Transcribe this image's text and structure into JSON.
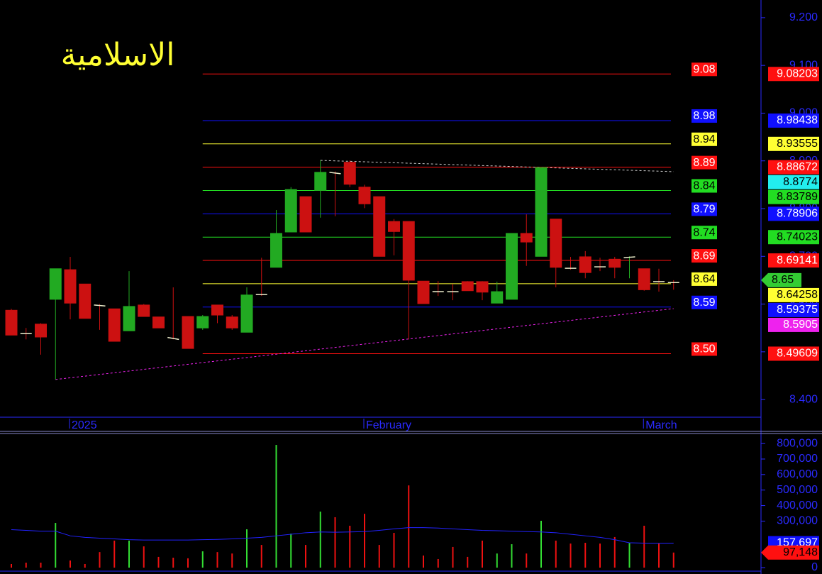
{
  "chart_data": {
    "type": "candlestick",
    "title": "الاسلامية",
    "title_color": "#ffff33",
    "axis_color": "#2a2aff",
    "up_color": "#22aa22",
    "down_color": "#cc1111",
    "categories": [
      null,
      null,
      null,
      null,
      "2025",
      null,
      null,
      null,
      null,
      null,
      null,
      null,
      null,
      null,
      null,
      null,
      null,
      null,
      null,
      null,
      null,
      null,
      null,
      null,
      "February",
      null,
      null,
      null,
      null,
      null,
      null,
      null,
      null,
      null,
      null,
      null,
      null,
      null,
      null,
      null,
      null,
      null,
      null,
      "March",
      null,
      null
    ],
    "open": [
      8.587,
      8.538,
      8.558,
      8.61,
      8.672,
      8.642,
      8.598,
      8.59,
      8.544,
      8.598,
      8.573,
      8.53,
      8.574,
      8.55,
      8.598,
      8.573,
      8.541,
      8.62,
      8.677,
      8.751,
      8.825,
      8.838,
      8.876,
      8.897,
      8.845,
      8.825,
      8.773,
      8.773,
      8.648,
      8.626,
      8.626,
      8.647,
      8.647,
      8.602,
      8.61,
      8.748,
      8.7,
      8.778,
      8.675,
      8.699,
      8.678,
      8.694,
      8.697,
      8.674,
      8.647,
      8.645
    ],
    "high": [
      8.59,
      8.55,
      8.56,
      8.674,
      8.699,
      8.642,
      8.6,
      8.59,
      8.669,
      8.6,
      8.573,
      8.635,
      8.574,
      8.577,
      8.598,
      8.577,
      8.635,
      8.697,
      8.797,
      8.845,
      8.825,
      8.901,
      8.878,
      8.901,
      8.85,
      8.825,
      8.778,
      8.773,
      8.648,
      8.648,
      8.642,
      8.648,
      8.648,
      8.647,
      8.748,
      8.788,
      8.886,
      8.778,
      8.699,
      8.711,
      8.697,
      8.699,
      8.7,
      8.674,
      8.674,
      8.65
    ],
    "low": [
      8.535,
      8.526,
      8.494,
      8.442,
      8.568,
      8.57,
      8.546,
      8.522,
      8.544,
      8.574,
      8.55,
      8.526,
      8.507,
      8.546,
      8.56,
      8.546,
      8.541,
      8.617,
      8.677,
      8.751,
      8.751,
      8.781,
      8.784,
      8.845,
      8.801,
      8.7,
      8.702,
      8.526,
      8.601,
      8.617,
      8.608,
      8.628,
      8.608,
      8.602,
      8.61,
      8.68,
      8.7,
      8.635,
      8.672,
      8.654,
      8.669,
      8.654,
      8.654,
      8.628,
      8.626,
      8.63
    ],
    "close": [
      8.535,
      8.538,
      8.531,
      8.674,
      8.602,
      8.57,
      8.596,
      8.522,
      8.595,
      8.574,
      8.55,
      8.526,
      8.507,
      8.574,
      8.577,
      8.55,
      8.619,
      8.62,
      8.748,
      8.84,
      8.751,
      8.876,
      8.873,
      8.851,
      8.81,
      8.7,
      8.752,
      8.65,
      8.601,
      8.626,
      8.626,
      8.628,
      8.625,
      8.626,
      8.748,
      8.73,
      8.886,
      8.677,
      8.675,
      8.666,
      8.678,
      8.677,
      8.699,
      8.63,
      8.647,
      8.645
    ],
    "ylim": [
      8.363,
      9.237
    ],
    "yticks": [
      {
        "value": 8.4,
        "label": "8.400"
      },
      {
        "value": 8.5,
        "label": "8.500"
      },
      {
        "value": 8.6,
        "label": "8.600"
      },
      {
        "value": 8.7,
        "label": "8.700"
      },
      {
        "value": 8.8,
        "label": "8.800"
      },
      {
        "value": 8.9,
        "label": "8.900"
      },
      {
        "value": 9.0,
        "label": "9.000"
      },
      {
        "value": 9.1,
        "label": "9.100"
      },
      {
        "value": 9.2,
        "label": "9.200"
      }
    ],
    "levels": [
      {
        "value": 9.08203,
        "label": "9.08",
        "color": "#ff1010",
        "text_color": "#ffffff"
      },
      {
        "value": 8.98438,
        "label": "8.98",
        "color": "#1010ff",
        "text_color": "#ffffff"
      },
      {
        "value": 8.93555,
        "label": "8.94",
        "color": "#ffff33",
        "text_color": "#000000"
      },
      {
        "value": 8.88672,
        "label": "8.89",
        "color": "#ff1010",
        "text_color": "#ffffff"
      },
      {
        "value": 8.83789,
        "label": "8.84",
        "color": "#22dd22",
        "text_color": "#000000"
      },
      {
        "value": 8.78906,
        "label": "8.79",
        "color": "#1010ff",
        "text_color": "#ffffff"
      },
      {
        "value": 8.74023,
        "label": "8.74",
        "color": "#22dd22",
        "text_color": "#000000"
      },
      {
        "value": 8.69141,
        "label": "8.69",
        "color": "#ff1010",
        "text_color": "#ffffff"
      },
      {
        "value": 8.64258,
        "label": "8.64",
        "color": "#ffff33",
        "text_color": "#000000"
      },
      {
        "value": 8.59375,
        "label": "8.59",
        "color": "#1010ff",
        "text_color": "#ffffff"
      },
      {
        "value": 8.49609,
        "label": "8.50",
        "color": "#ff1010",
        "text_color": "#ffffff"
      }
    ],
    "trendlines": [
      {
        "x": [
          21,
          45
        ],
        "y": [
          8.901,
          8.8774
        ],
        "color": "#cccccc",
        "text_color": "#000000",
        "tag_color": "#22eeee"
      },
      {
        "x": [
          3,
          45
        ],
        "y": [
          8.442,
          8.5905
        ],
        "color": "#ee22ee",
        "text_color": "#ffffff",
        "tag_color": "#ee22ee"
      }
    ],
    "last_price": {
      "value": 8.65,
      "color": "#33cc33",
      "text_color": "#000000"
    },
    "volume": {
      "values": [
        23000,
        32000,
        32000,
        288000,
        46000,
        23000,
        100000,
        174000,
        174000,
        137000,
        69000,
        64000,
        60000,
        105000,
        100000,
        91000,
        247000,
        146000,
        791000,
        219000,
        146000,
        361000,
        325000,
        270000,
        347000,
        146000,
        224000,
        530000,
        78000,
        55000,
        133000,
        69000,
        174000,
        91000,
        151000,
        91000,
        302000,
        174000,
        155000,
        160000,
        155000,
        197000,
        160000,
        270000,
        155000,
        97148
      ],
      "ma": [
        245000,
        240000,
        235000,
        235000,
        205000,
        195000,
        190000,
        185000,
        180000,
        178000,
        178000,
        178000,
        178000,
        180000,
        182000,
        185000,
        190000,
        195000,
        205000,
        215000,
        225000,
        230000,
        228000,
        230000,
        232000,
        240000,
        250000,
        258000,
        258000,
        255000,
        250000,
        245000,
        240000,
        238000,
        235000,
        232000,
        230000,
        225000,
        215000,
        205000,
        195000,
        180000,
        160000,
        158000,
        157000,
        157697
      ],
      "ma_color": "#2222ff",
      "ylim": [
        0,
        860000
      ],
      "yticks": [
        0,
        {
          "value": 300000,
          "label": "300,000"
        },
        {
          "value": 400000,
          "label": "400,000"
        },
        {
          "value": 500000,
          "label": "500,000"
        },
        {
          "value": 600000,
          "label": "600,000"
        },
        {
          "value": 700000,
          "label": "700,000"
        },
        {
          "value": 800000,
          "label": "800,000"
        }
      ],
      "tags": [
        {
          "value": 157697,
          "label": "157,697",
          "color": "#1010ff",
          "text_color": "#ffffff"
        },
        {
          "value": 97148,
          "label": "97,148",
          "color": "#ff1010",
          "text_color": "#000000"
        }
      ]
    }
  }
}
